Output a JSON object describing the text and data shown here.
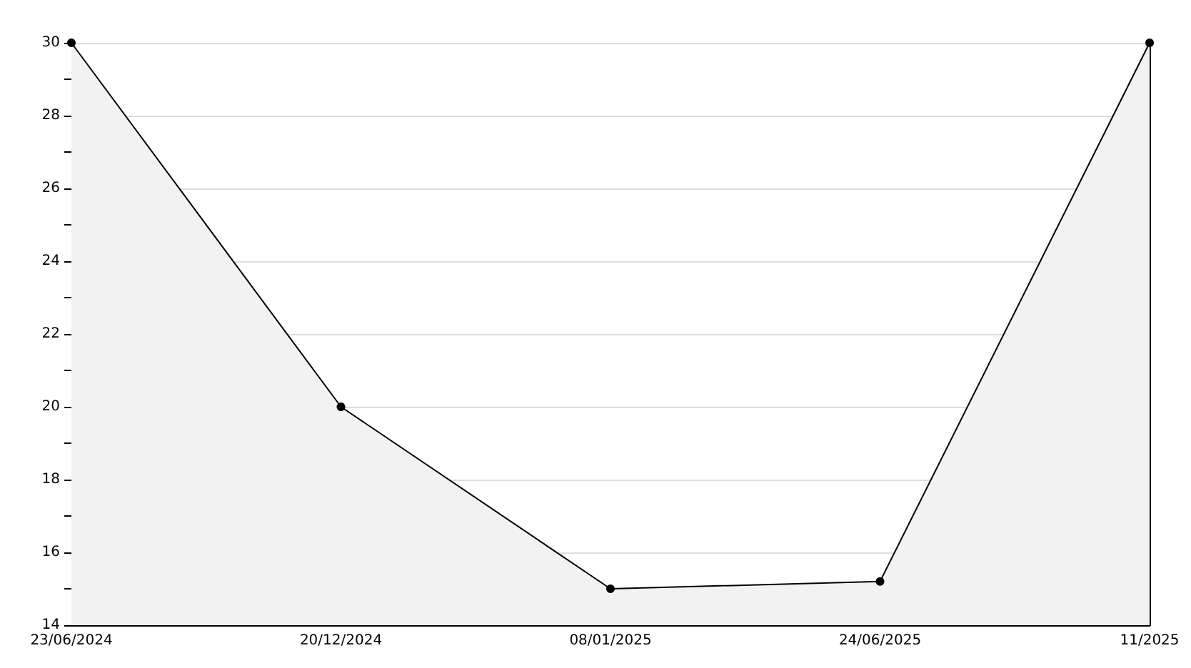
{
  "chart_data": {
    "type": "area",
    "categories": [
      "23/06/2024",
      "20/12/2024",
      "08/01/2025",
      "24/06/2025",
      "11/2025"
    ],
    "series": [
      {
        "color": "#000000",
        "values": [
          30,
          20,
          15,
          15.2,
          30
        ]
      }
    ],
    "ylim": [
      14,
      30
    ],
    "yticks": [
      14,
      {
        "value": 15,
        "label": null
      },
      16,
      {
        "value": 17,
        "label": null
      },
      18,
      {
        "value": 19,
        "label": null
      },
      20,
      {
        "value": 21,
        "label": null
      },
      22,
      {
        "value": 23,
        "label": null
      },
      24,
      {
        "value": 25,
        "label": null
      },
      26,
      {
        "value": 27,
        "label": null
      },
      28,
      {
        "value": 29,
        "label": null
      },
      30
    ],
    "grid": "y",
    "marker": "circle",
    "line_style": "solid"
  }
}
